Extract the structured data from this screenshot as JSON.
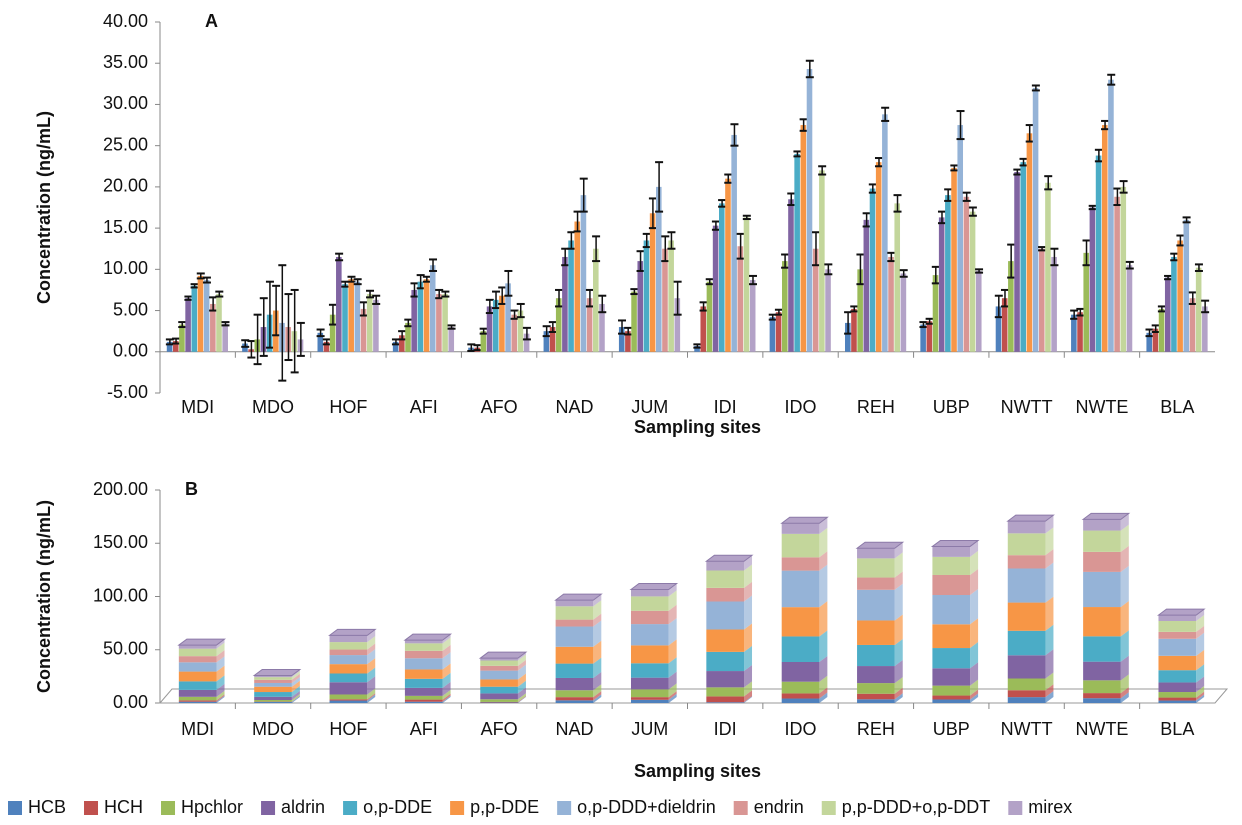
{
  "chart_data": [
    {
      "type": "bar",
      "title": "A",
      "y_label": "Concentration (ng/mL)",
      "x_label": "Sampling sites",
      "categories": [
        "MDI",
        "MDO",
        "HOF",
        "AFI",
        "AFO",
        "NAD",
        "JUM",
        "IDI",
        "IDO",
        "REH",
        "UBP",
        "NWTT",
        "NWTE",
        "BLA"
      ],
      "ylim": [
        -5,
        40
      ],
      "yticks": [
        {
          "value": -5,
          "label": "-5.00"
        },
        {
          "value": 0,
          "label": "0.00"
        },
        {
          "value": 5,
          "label": "5.00"
        },
        {
          "value": 10,
          "label": "10.00"
        },
        {
          "value": 15,
          "label": "15.00"
        },
        {
          "value": 20,
          "label": "20.00"
        },
        {
          "value": 25,
          "label": "25.00"
        },
        {
          "value": 30,
          "label": "30.00"
        },
        {
          "value": 35,
          "label": "35.00"
        },
        {
          "value": 40,
          "label": "40.00"
        }
      ],
      "grid": false,
      "error_bars": true,
      "series": [
        {
          "color": "#4f81bd",
          "values": [
            1.2,
            1.0,
            2.3,
            1.2,
            0.5,
            2.5,
            3.0,
            0.7,
            4.2,
            3.5,
            3.3,
            5.5,
            4.5,
            2.3
          ],
          "errors": [
            0.3,
            0.4,
            0.4,
            0.3,
            0.4,
            0.6,
            0.8,
            0.2,
            0.3,
            1.3,
            0.3,
            1.3,
            0.5,
            0.4
          ]
        },
        {
          "color": "#c0504d",
          "values": [
            1.3,
            0.3,
            1.2,
            2.0,
            0.5,
            3.0,
            2.5,
            5.5,
            4.8,
            5.2,
            3.7,
            6.5,
            4.8,
            2.8
          ],
          "errors": [
            0.3,
            1.0,
            0.3,
            0.5,
            0.3,
            0.6,
            0.4,
            0.5,
            0.3,
            0.3,
            0.3,
            1.0,
            0.4,
            0.4
          ]
        },
        {
          "color": "#9bbb59",
          "values": [
            3.3,
            1.5,
            4.5,
            3.5,
            2.5,
            6.5,
            7.3,
            8.5,
            11.0,
            10.0,
            9.3,
            11.0,
            12.0,
            5.2
          ],
          "errors": [
            0.3,
            3.0,
            1.2,
            0.4,
            0.3,
            1.0,
            0.3,
            0.3,
            0.8,
            1.8,
            1.0,
            2.0,
            1.5,
            0.3
          ]
        },
        {
          "color": "#8064a2",
          "values": [
            6.5,
            3.0,
            11.5,
            7.5,
            5.5,
            11.5,
            11.0,
            15.3,
            18.5,
            16.0,
            16.3,
            21.8,
            17.5,
            9.0
          ],
          "errors": [
            0.2,
            3.5,
            0.4,
            0.8,
            0.8,
            1.0,
            1.2,
            0.5,
            0.7,
            0.8,
            0.7,
            0.3,
            0.2,
            0.2
          ]
        },
        {
          "color": "#4bacc6",
          "values": [
            8.0,
            4.5,
            8.2,
            8.5,
            6.3,
            13.5,
            13.5,
            18.0,
            24.0,
            19.8,
            19.0,
            23.0,
            23.8,
            11.5
          ],
          "errors": [
            0.2,
            4.0,
            0.3,
            0.8,
            1.0,
            1.0,
            0.8,
            0.4,
            0.3,
            0.5,
            0.7,
            0.4,
            0.7,
            0.4
          ]
        },
        {
          "color": "#f79646",
          "values": [
            9.2,
            5.0,
            8.8,
            8.8,
            6.8,
            15.8,
            16.8,
            21.0,
            27.5,
            23.0,
            22.3,
            26.5,
            27.5,
            13.5
          ],
          "errors": [
            0.3,
            3.0,
            0.3,
            0.3,
            1.0,
            1.2,
            1.8,
            0.5,
            0.7,
            0.5,
            0.3,
            1.0,
            0.5,
            0.6
          ]
        },
        {
          "color": "#95b3d7",
          "values": [
            8.7,
            3.5,
            8.5,
            10.5,
            8.3,
            19.0,
            20.0,
            26.3,
            34.3,
            28.8,
            27.5,
            32.0,
            33.0,
            16.0
          ],
          "errors": [
            0.3,
            7.0,
            0.3,
            0.7,
            1.5,
            2.0,
            3.0,
            1.3,
            1.0,
            0.8,
            1.7,
            0.3,
            0.6,
            0.3
          ]
        },
        {
          "color": "#d99694",
          "values": [
            5.8,
            3.0,
            5.2,
            7.0,
            4.5,
            6.5,
            12.5,
            12.8,
            12.5,
            11.5,
            18.8,
            12.5,
            18.8,
            6.5
          ],
          "errors": [
            0.8,
            4.0,
            0.8,
            0.5,
            0.5,
            1.0,
            1.5,
            1.5,
            2.0,
            0.5,
            0.5,
            0.2,
            1.0,
            0.7
          ]
        },
        {
          "color": "#c3d69b",
          "values": [
            7.0,
            2.5,
            7.0,
            7.0,
            5.0,
            12.5,
            13.5,
            16.3,
            22.0,
            18.0,
            17.0,
            20.5,
            20.0,
            10.2
          ],
          "errors": [
            0.3,
            5.0,
            0.4,
            0.3,
            0.8,
            1.5,
            1.0,
            0.2,
            0.5,
            1.0,
            0.5,
            0.8,
            0.7,
            0.4
          ]
        },
        {
          "color": "#b3a2c7",
          "values": [
            3.4,
            1.5,
            6.3,
            3.0,
            2.2,
            5.8,
            6.5,
            8.7,
            10.0,
            9.5,
            9.8,
            11.5,
            10.5,
            5.5
          ],
          "errors": [
            0.2,
            2.0,
            0.5,
            0.2,
            0.7,
            1.0,
            2.0,
            0.5,
            0.6,
            0.4,
            0.2,
            1.0,
            0.4,
            0.7
          ]
        }
      ]
    },
    {
      "type": "bar",
      "stacked": true,
      "title": "B",
      "y_label": "Concentration (ng/mL)",
      "x_label": "Sampling sites",
      "categories": [
        "MDI",
        "MDO",
        "HOF",
        "AFI",
        "AFO",
        "NAD",
        "JUM",
        "IDI",
        "IDO",
        "REH",
        "UBP",
        "NWTT",
        "NWTE",
        "BLA"
      ],
      "ylim": [
        0,
        200
      ],
      "yticks": [
        {
          "value": 0,
          "label": "0.00"
        },
        {
          "value": 50,
          "label": "50.00"
        },
        {
          "value": 100,
          "label": "100.00"
        },
        {
          "value": 150,
          "label": "150.00"
        },
        {
          "value": 200,
          "label": "200.00"
        }
      ],
      "grid": false,
      "legend": "bottom",
      "series": [
        {
          "name": "HCB",
          "color": "#4f81bd",
          "values": [
            1.2,
            1.0,
            2.3,
            1.2,
            0.5,
            2.5,
            3.0,
            0.7,
            4.2,
            3.5,
            3.3,
            5.5,
            4.5,
            2.3
          ]
        },
        {
          "name": "HCH",
          "color": "#c0504d",
          "values": [
            1.3,
            0.3,
            1.2,
            2.0,
            0.5,
            3.0,
            2.5,
            5.5,
            4.8,
            5.2,
            3.7,
            6.5,
            4.8,
            2.8
          ]
        },
        {
          "name": "Hpchlor",
          "color": "#9bbb59",
          "values": [
            3.3,
            1.5,
            4.5,
            3.5,
            2.5,
            6.5,
            7.3,
            8.5,
            11.0,
            10.0,
            9.3,
            11.0,
            12.0,
            5.2
          ]
        },
        {
          "name": "aldrin",
          "color": "#8064a2",
          "values": [
            6.5,
            3.0,
            11.5,
            7.5,
            5.5,
            11.5,
            11.0,
            15.3,
            18.5,
            16.0,
            16.3,
            21.8,
            17.5,
            9.0
          ]
        },
        {
          "name": "o,p-DDE",
          "color": "#4bacc6",
          "values": [
            8.0,
            4.5,
            8.2,
            8.5,
            6.3,
            13.5,
            13.5,
            18.0,
            24.0,
            19.8,
            19.0,
            23.0,
            23.8,
            11.5
          ]
        },
        {
          "name": "p,p-DDE",
          "color": "#f79646",
          "values": [
            9.2,
            5.0,
            8.8,
            8.8,
            6.8,
            15.8,
            16.8,
            21.0,
            27.5,
            23.0,
            22.3,
            26.5,
            27.5,
            13.5
          ]
        },
        {
          "name": "o,p-DDD+dieldrin",
          "color": "#95b3d7",
          "values": [
            8.7,
            3.5,
            8.5,
            10.5,
            8.3,
            19.0,
            20.0,
            26.3,
            34.3,
            28.8,
            27.5,
            32.0,
            33.0,
            16.0
          ]
        },
        {
          "name": "endrin",
          "color": "#d99694",
          "values": [
            5.8,
            3.0,
            5.2,
            7.0,
            4.5,
            6.5,
            12.5,
            12.8,
            12.5,
            11.5,
            18.8,
            12.5,
            18.8,
            6.5
          ]
        },
        {
          "name": "p,p-DDD+o,p-DDT",
          "color": "#c3d69b",
          "values": [
            7.0,
            2.5,
            7.0,
            7.0,
            5.0,
            12.5,
            13.5,
            16.3,
            22.0,
            18.0,
            17.0,
            20.5,
            20.0,
            10.2
          ]
        },
        {
          "name": "mirex",
          "color": "#b3a2c7",
          "values": [
            3.4,
            1.5,
            6.3,
            3.0,
            2.2,
            5.8,
            6.5,
            8.7,
            10.0,
            9.5,
            9.8,
            11.5,
            10.5,
            5.5
          ]
        }
      ]
    }
  ]
}
